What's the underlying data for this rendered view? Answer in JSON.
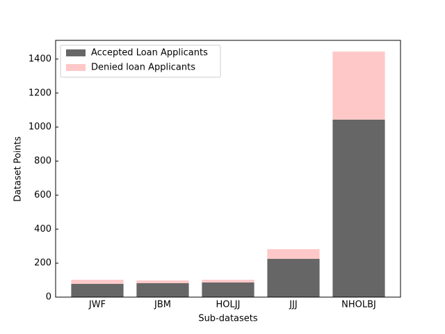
{
  "chart_data": {
    "type": "bar",
    "stacked": true,
    "x_label": "Sub-datasets",
    "y_label": "Dataset Points",
    "categories": [
      "JWF",
      "JBM",
      "HOLJJ",
      "JJJ",
      "NHOLBJ"
    ],
    "series": [
      {
        "name": "Accepted Loan Applicants",
        "color": "#666666",
        "values": [
          78,
          82,
          86,
          225,
          1044
        ]
      },
      {
        "name": "Denied loan Applicants",
        "color": "#ffc8c8",
        "values": [
          24,
          16,
          16,
          57,
          400
        ]
      }
    ],
    "ylim": [
      0,
      1510
    ],
    "yticks": [
      0,
      200,
      400,
      600,
      800,
      1000,
      1200,
      1400
    ],
    "legend": "upper left"
  }
}
